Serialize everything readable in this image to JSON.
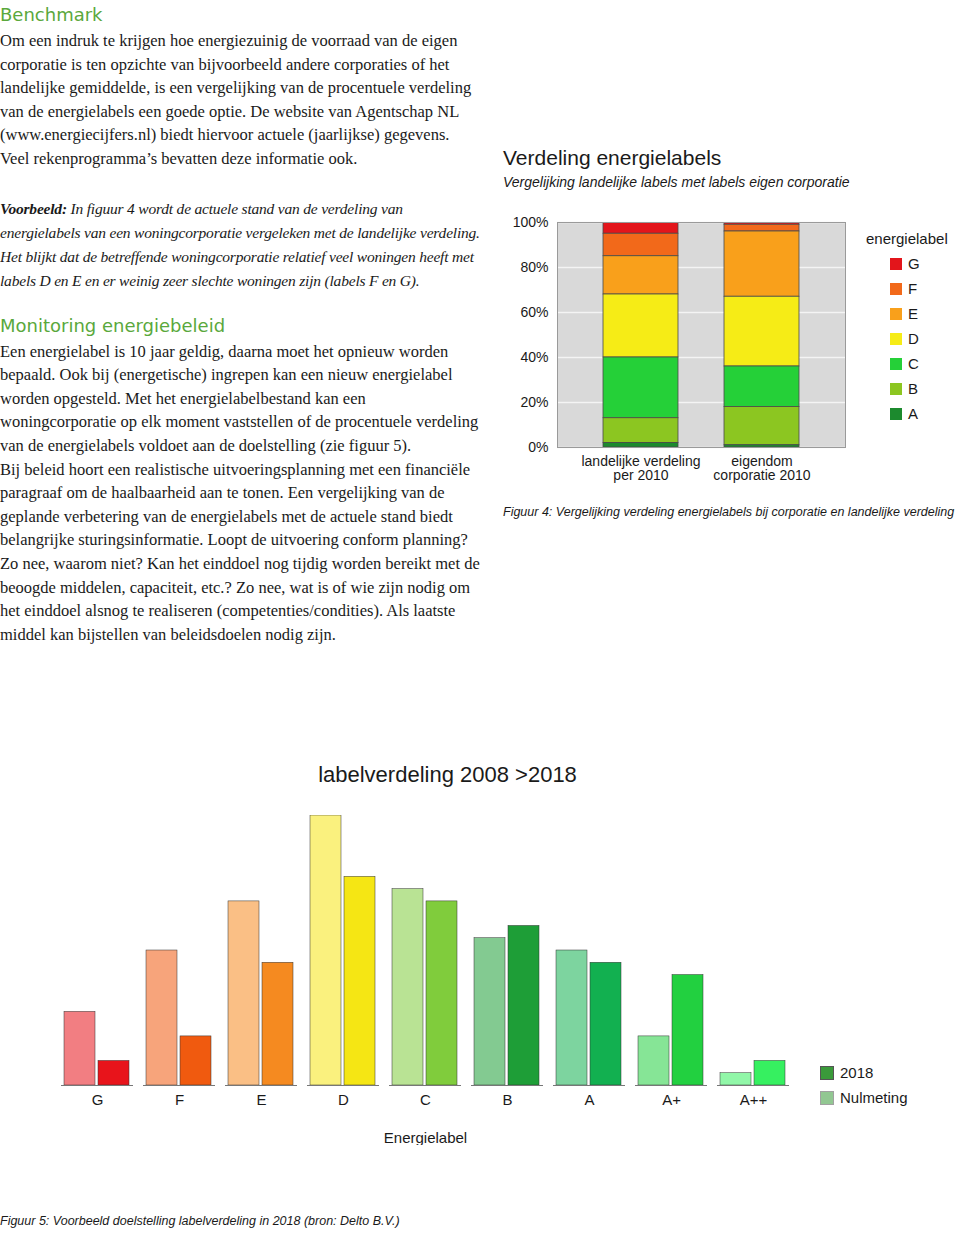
{
  "sections": [
    {
      "heading": "Benchmark",
      "paragraphs": [
        "Om een indruk te krijgen hoe energiezuinig de voorraad van de eigen corporatie is ten opzichte van bijvoorbeeld andere corporaties of het landelijke gemiddelde, is een vergelijking van de procentuele verdeling van de energielabels een goede optie. De website van Agentschap NL (www.energiecijfers.nl) biedt hiervoor actuele (jaarlijkse) gegevens. Veel rekenprogramma’s bevatten deze informatie ook."
      ]
    },
    {
      "example": {
        "lead": "Voorbeeld:",
        "text": "In figuur 4 wordt de actuele stand van de verdeling van energielabels van een woningcorporatie vergeleken met de landelijke verdeling. Het blijkt dat de betreffende woningcorporatie relatief veel woningen heeft met labels D en E en er weinig zeer slechte woningen zijn (labels F en G)."
      }
    },
    {
      "heading": "Monitoring energiebeleid",
      "paragraphs": [
        "Een energielabel is 10 jaar geldig, daarna moet het opnieuw worden bepaald. Ook bij (energetische) ingrepen kan een nieuw energielabel worden opgesteld. Met het energielabelbestand kan een woningcorporatie op elk moment vaststellen of de procentuele verdeling van de energielabels voldoet aan de doelstelling (zie figuur 5).",
        "Bij beleid hoort een realistische uitvoeringsplanning met een financiële paragraaf om de haalbaarheid aan te tonen. Een vergelijking van de geplande verbetering van de energielabels met de actuele stand biedt belangrijke sturingsinformatie. Loopt de uitvoering conform planning? Zo nee, waarom niet? Kan het einddoel nog tijdig worden bereikt met de beoogde middelen, capaciteit, etc.? Zo nee, wat is of wie zijn nodig om het einddoel alsnog te realiseren (competenties/condities). Als laatste middel kan bijstellen van beleidsdoelen nodig zijn."
      ]
    }
  ],
  "chart_data": [
    {
      "type": "bar",
      "title": "Verdeling energielabels",
      "subtitle": "Vergelijking landelijke labels met labels eigen corporatie",
      "caption": "Figuur 4: Vergelijking verdeling energielabels bij corporatie en landelijke verdeling",
      "legend_title": "energielabel",
      "legend": "right",
      "stacked": true,
      "grid": true,
      "categories": [
        "landelijke verdeling\nper 2010",
        "eigendom\ncorporatie 2010"
      ],
      "series": [
        {
          "name": "G",
          "color": "#e3151b",
          "values": [
            5,
            1
          ]
        },
        {
          "name": "F",
          "color": "#f2691a",
          "values": [
            10,
            3
          ]
        },
        {
          "name": "E",
          "color": "#f9a01b",
          "values": [
            17,
            29
          ]
        },
        {
          "name": "D",
          "color": "#f6ec16",
          "values": [
            28,
            31
          ]
        },
        {
          "name": "C",
          "color": "#25d038",
          "values": [
            27,
            18
          ]
        },
        {
          "name": "B",
          "color": "#8cc621",
          "values": [
            11,
            17
          ]
        },
        {
          "name": "A",
          "color": "#1c8a2e",
          "values": [
            2,
            1
          ]
        }
      ],
      "ylim": [
        0,
        100
      ],
      "yticks": [
        {
          "value": 0,
          "label": "0%"
        },
        {
          "value": 20,
          "label": "20%"
        },
        {
          "value": 40,
          "label": "40%"
        },
        {
          "value": 60,
          "label": "60%"
        },
        {
          "value": 80,
          "label": "80%"
        },
        {
          "value": 100,
          "label": "100%"
        }
      ]
    },
    {
      "type": "bar",
      "title": "labelverdeling 2008 >2018",
      "caption": "Figuur 5: Voorbeeld doelstelling labelverdeling in 2018 (bron: Delto B.V.)",
      "xlabel": "Energielabel",
      "tick_labels": "x",
      "legend": "right",
      "categories": [
        "G",
        "F",
        "E",
        "D",
        "C",
        "B",
        "A",
        "A+",
        "A++"
      ],
      "colors": [
        "#e8141b",
        "#f05a0f",
        "#f58a20",
        "#f5e614",
        "#80cc3c",
        "#1e9e37",
        "#12b050",
        "#22d040",
        "#36f060"
      ],
      "series": [
        {
          "name": "Nulmeting",
          "values": [
            6,
            11,
            15,
            22,
            16,
            12,
            11,
            4,
            1
          ]
        },
        {
          "name": "2018",
          "values": [
            2,
            4,
            10,
            17,
            15,
            13,
            10,
            9,
            2
          ]
        }
      ]
    }
  ]
}
